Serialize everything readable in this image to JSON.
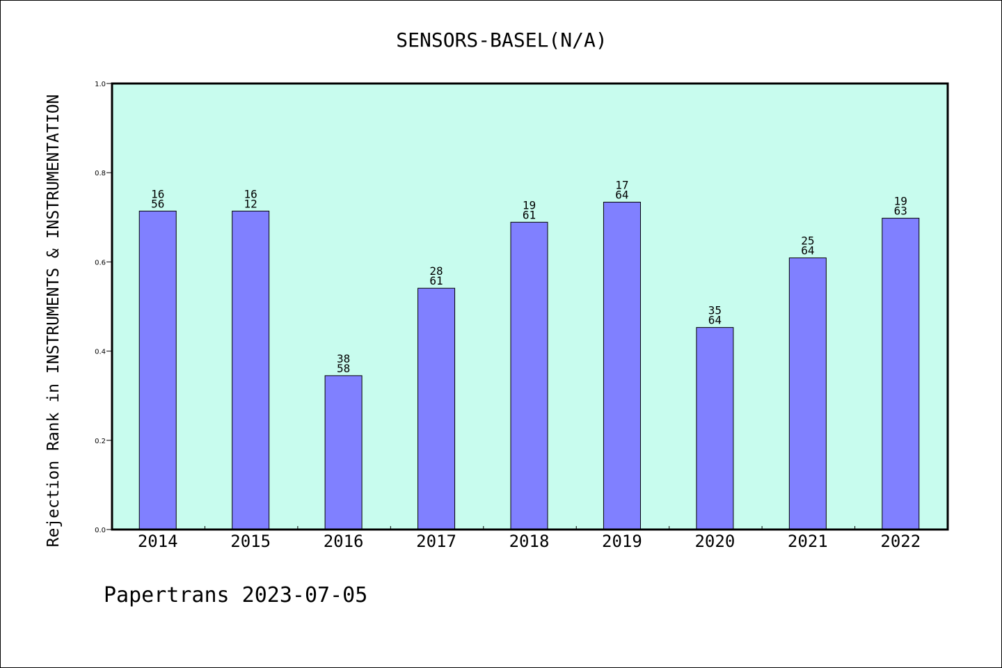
{
  "chart_data": {
    "type": "bar",
    "title": "SENSORS-BASEL(N/A)",
    "xlabel": "",
    "ylabel": "Rejection Rank in INSTRUMENTS & INSTRUMENTATION",
    "ylim": [
      0,
      1.0
    ],
    "yticks": [
      "0.0",
      "0.2",
      "0.4",
      "0.6",
      "0.8",
      "1.0"
    ],
    "categories": [
      "2014",
      "2015",
      "2016",
      "2017",
      "2018",
      "2019",
      "2020",
      "2021",
      "2022"
    ],
    "values": [
      0.714,
      0.714,
      0.345,
      0.541,
      0.689,
      0.734,
      0.453,
      0.609,
      0.698
    ],
    "label_top": [
      "16",
      "16",
      "38",
      "28",
      "19",
      "17",
      "35",
      "25",
      "19"
    ],
    "label_bottom": [
      "56",
      "12",
      "58",
      "61",
      "61",
      "64",
      "64",
      "64",
      "63"
    ],
    "grid": false,
    "bar_color": "#8080ff",
    "plot_background": "#c8fcee"
  },
  "footer": "Papertrans 2023-07-05"
}
